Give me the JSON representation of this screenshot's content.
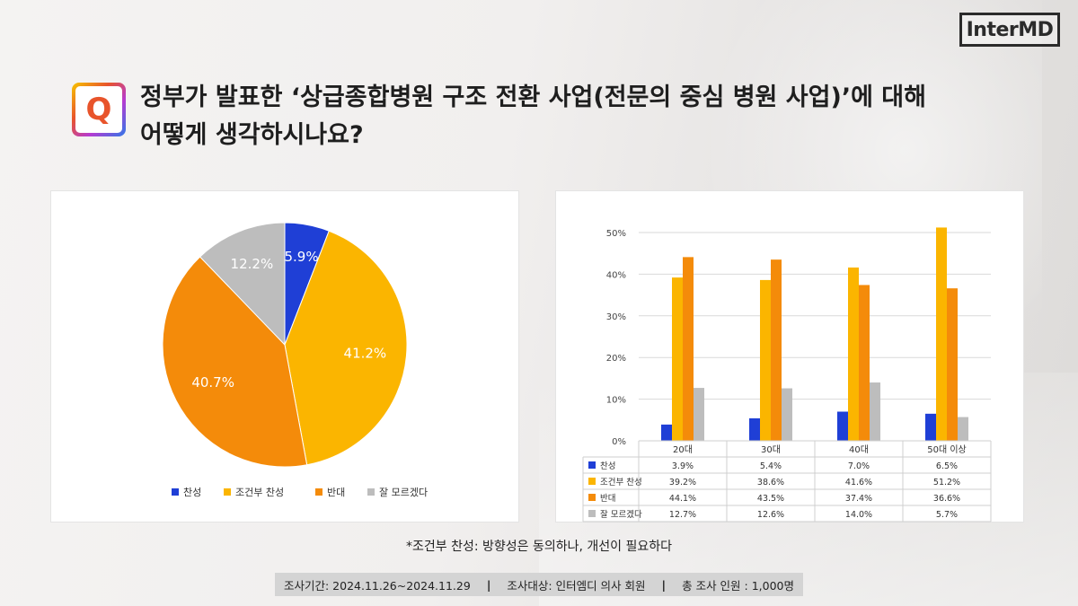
{
  "brand": {
    "logo_text": "InterMD"
  },
  "question": {
    "icon_letter": "Q",
    "line1": "정부가 발표한 ‘상급종합병원 구조 전환 사업(전문의 중심 병원 사업)’에 대해",
    "line2": "어떻게 생각하시나요?"
  },
  "colors": {
    "찬성": "#1f3fd6",
    "조건부 찬성": "#fbb500",
    "반대": "#f48b0a",
    "잘 모르겠다": "#bdbdbd"
  },
  "chart_data": [
    {
      "type": "pie",
      "labels": [
        "찬성",
        "조건부 찬성",
        "반대",
        "잘 모르겠다"
      ],
      "values": [
        5.9,
        41.2,
        40.7,
        12.2
      ],
      "value_labels": [
        "5.9%",
        "41.2%",
        "40.7%",
        "12.2%"
      ],
      "legend": [
        "찬성",
        "조건부 찬성",
        "반대",
        "잘 모르겠다"
      ],
      "legend_position": "bottom"
    },
    {
      "type": "bar",
      "categories": [
        "20대",
        "30대",
        "40대",
        "50대 이상"
      ],
      "series": [
        {
          "name": "찬성",
          "values": [
            3.9,
            5.4,
            7.0,
            6.5
          ],
          "labels": [
            "3.9%",
            "5.4%",
            "7.0%",
            "6.5%"
          ]
        },
        {
          "name": "조건부 찬성",
          "values": [
            39.2,
            38.6,
            41.6,
            51.2
          ],
          "labels": [
            "39.2%",
            "38.6%",
            "41.6%",
            "51.2%"
          ]
        },
        {
          "name": "반대",
          "values": [
            44.1,
            43.5,
            37.4,
            36.6
          ],
          "labels": [
            "44.1%",
            "43.5%",
            "37.4%",
            "36.6%"
          ]
        },
        {
          "name": "잘 모르겠다",
          "values": [
            12.7,
            12.6,
            14.0,
            5.7
          ],
          "labels": [
            "12.7%",
            "12.6%",
            "14.0%",
            "5.7%"
          ]
        }
      ],
      "ylim": [
        0,
        50
      ],
      "yticks": [
        "0%",
        "10%",
        "20%",
        "30%",
        "40%",
        "50%"
      ],
      "grid": true,
      "data_table": true
    }
  ],
  "footnote": "*조건부 찬성: 방향성은 동의하나, 개선이 필요하다",
  "survey_info": {
    "period": "조사기간: 2024.11.26~2024.11.29",
    "target": "조사대상: 인터엠디 의사 회원",
    "count": "총 조사 인원 : 1,000명",
    "separator": "|"
  }
}
